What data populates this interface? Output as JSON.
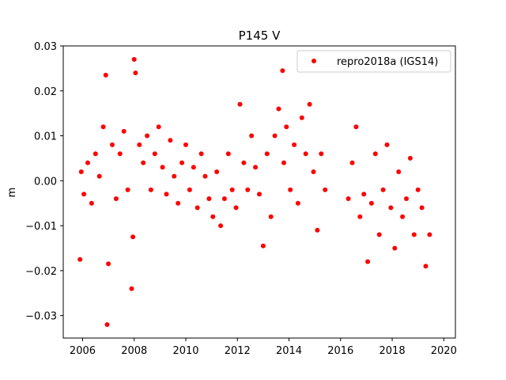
{
  "chart_data": {
    "type": "scatter",
    "title": "P145 V",
    "xlabel": "",
    "ylabel": "m",
    "xlim": [
      2005.25,
      2020.45
    ],
    "ylim": [
      -0.035,
      0.03
    ],
    "xticks": [
      2006,
      2008,
      2010,
      2012,
      2014,
      2016,
      2018,
      2020
    ],
    "yticks": [
      -0.03,
      -0.02,
      -0.01,
      0.0,
      0.01,
      0.02,
      0.03
    ],
    "xtick_labels": [
      "2006",
      "2008",
      "2010",
      "2012",
      "2014",
      "2016",
      "2018",
      "2020"
    ],
    "ytick_labels": [
      "−0.03",
      "−0.02",
      "−0.01",
      "0.00",
      "0.01",
      "0.02",
      "0.03"
    ],
    "grid": false,
    "legend_position": "top-right",
    "color": "#ff0000",
    "series": [
      {
        "name": "repro2018a (IGS14)",
        "x": [
          2005.9,
          2005.95,
          2006.05,
          2006.2,
          2006.35,
          2006.5,
          2006.65,
          2006.8,
          2006.9,
          2006.95,
          2007.0,
          2007.15,
          2007.3,
          2007.45,
          2007.6,
          2007.75,
          2007.9,
          2007.95,
          2008.0,
          2008.05,
          2008.2,
          2008.35,
          2008.5,
          2008.65,
          2008.8,
          2008.95,
          2009.1,
          2009.25,
          2009.4,
          2009.55,
          2009.7,
          2009.85,
          2010.0,
          2010.15,
          2010.3,
          2010.45,
          2010.6,
          2010.75,
          2010.9,
          2011.05,
          2011.2,
          2011.35,
          2011.5,
          2011.65,
          2011.8,
          2011.95,
          2012.1,
          2012.25,
          2012.4,
          2012.55,
          2012.7,
          2012.85,
          2013.0,
          2013.15,
          2013.3,
          2013.45,
          2013.6,
          2013.75,
          2013.8,
          2013.9,
          2014.05,
          2014.2,
          2014.35,
          2014.5,
          2014.65,
          2014.8,
          2014.95,
          2015.1,
          2015.25,
          2015.4,
          2016.3,
          2016.45,
          2016.6,
          2016.75,
          2016.9,
          2017.05,
          2017.2,
          2017.35,
          2017.5,
          2017.65,
          2017.8,
          2017.95,
          2018.1,
          2018.25,
          2018.4,
          2018.55,
          2018.7,
          2018.85,
          2019.0,
          2019.15,
          2019.3,
          2019.45
        ],
        "y": [
          -0.0175,
          0.002,
          -0.003,
          0.004,
          -0.005,
          0.006,
          0.001,
          0.012,
          0.0235,
          -0.032,
          -0.0185,
          0.008,
          -0.004,
          0.006,
          0.011,
          -0.002,
          -0.024,
          -0.0125,
          0.027,
          0.024,
          0.008,
          0.004,
          0.01,
          -0.002,
          0.006,
          0.012,
          0.003,
          -0.003,
          0.009,
          0.001,
          -0.005,
          0.004,
          0.008,
          -0.002,
          0.003,
          -0.006,
          0.006,
          0.001,
          -0.004,
          -0.008,
          0.002,
          -0.01,
          -0.004,
          0.006,
          -0.002,
          -0.006,
          0.017,
          0.004,
          -0.002,
          0.01,
          0.003,
          -0.003,
          -0.0145,
          0.006,
          -0.008,
          0.01,
          0.016,
          0.0245,
          0.004,
          0.012,
          -0.002,
          0.008,
          -0.005,
          0.014,
          0.006,
          0.017,
          0.002,
          -0.011,
          0.006,
          -0.002,
          -0.004,
          0.004,
          0.012,
          -0.008,
          -0.003,
          -0.018,
          -0.005,
          0.006,
          -0.012,
          -0.002,
          0.008,
          -0.006,
          -0.015,
          0.002,
          -0.008,
          -0.004,
          0.005,
          -0.012,
          -0.002,
          -0.006,
          -0.019,
          -0.012
        ]
      }
    ]
  }
}
